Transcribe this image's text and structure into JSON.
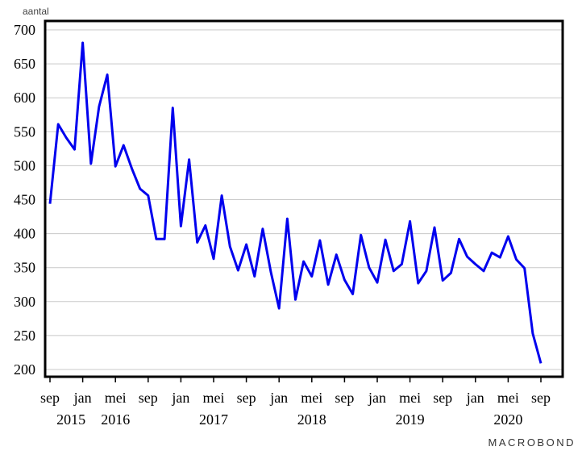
{
  "chart_data": {
    "type": "line",
    "title": "",
    "xlabel": "",
    "ylabel": "aantal",
    "ylim": [
      200,
      700
    ],
    "yticks": [
      200,
      250,
      300,
      350,
      400,
      450,
      500,
      550,
      600,
      650,
      700
    ],
    "grid": true,
    "legend": "none",
    "line_color": "#0000ee",
    "x_month_labels": [
      "sep",
      "jan",
      "mei",
      "sep",
      "jan",
      "mei",
      "sep",
      "jan",
      "mei",
      "sep",
      "jan",
      "mei",
      "sep",
      "jan",
      "mei",
      "sep"
    ],
    "x_year_labels": [
      "2015",
      "2016",
      "2017",
      "2018",
      "2019",
      "2020"
    ],
    "start": "2015-09",
    "end": "2020-09",
    "series": [
      {
        "values": [
          444,
          561,
          541,
          524,
          681,
          503,
          587,
          634,
          499,
          530,
          496,
          466,
          456,
          392,
          392,
          585,
          411,
          509,
          387,
          412,
          363,
          456,
          381,
          346,
          384,
          337,
          407,
          343,
          290,
          422,
          303,
          359,
          337,
          390,
          325,
          369,
          332,
          311,
          398,
          350,
          328,
          391,
          345,
          355,
          418,
          327,
          345,
          409,
          331,
          342,
          392,
          366,
          355,
          345,
          372,
          365,
          396,
          362,
          349,
          253,
          209
        ]
      }
    ]
  },
  "branding": {
    "text": "MACROBOND"
  }
}
